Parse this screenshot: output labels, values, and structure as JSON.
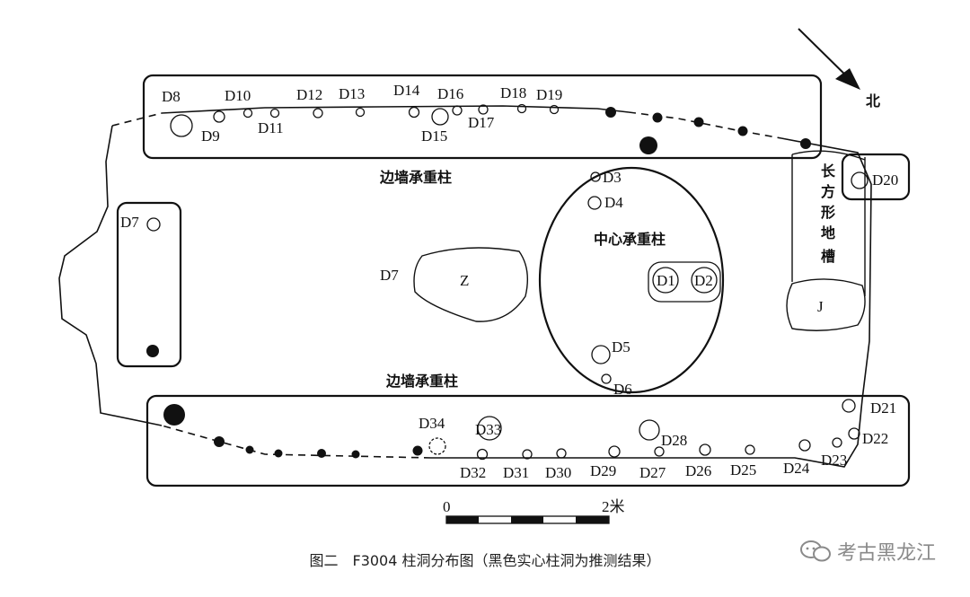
{
  "labels": {
    "north": "北",
    "side_wall_top": "边墙承重柱",
    "side_wall_bottom": "边墙承重柱",
    "center_columns": "中心承重柱",
    "trench": [
      "长",
      "方",
      "形",
      "地",
      "槽"
    ],
    "z": "Z",
    "j": "J",
    "d7_pit": "D7",
    "scale_zero": "0",
    "scale_end": "2米"
  },
  "postholes": [
    "D1",
    "D2",
    "D3",
    "D4",
    "D5",
    "D6",
    "D7",
    "D8",
    "D9",
    "D10",
    "D11",
    "D12",
    "D13",
    "D14",
    "D15",
    "D16",
    "D17",
    "D18",
    "D19",
    "D20",
    "D21",
    "D22",
    "D23",
    "D24",
    "D25",
    "D26",
    "D27",
    "D28",
    "D29",
    "D30",
    "D31",
    "D32",
    "D33",
    "D34"
  ],
  "caption": "图二　F3004 柱洞分布图（黑色实心柱洞为推测结果）",
  "watermark": "考古黑龙江"
}
